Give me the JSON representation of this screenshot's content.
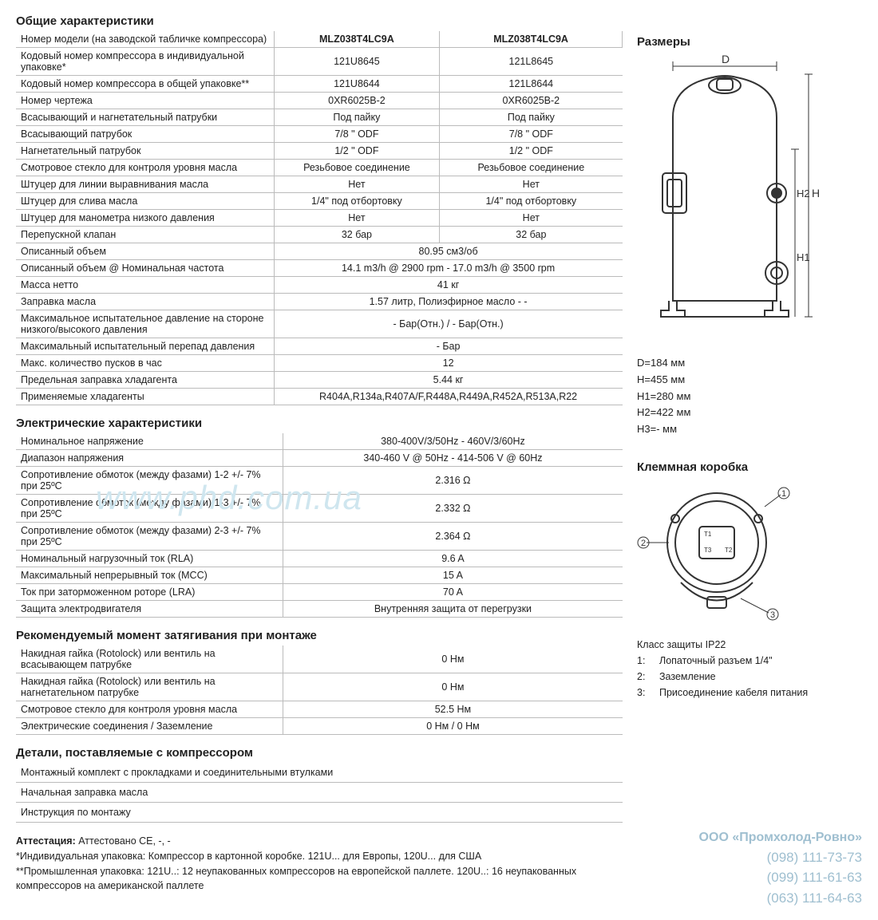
{
  "general": {
    "title": "Общие характеристики",
    "header_label": "Номер модели (на заводской табличке компрессора)",
    "models": [
      "MLZ038T4LC9A",
      "MLZ038T4LC9A"
    ],
    "rows_split": [
      {
        "label": "Кодовый номер компрессора в индивидуальной упаковке*",
        "a": "121U8645",
        "b": "121L8645"
      },
      {
        "label": "Кодовый номер компрессора в общей упаковке**",
        "a": "121U8644",
        "b": "121L8644"
      },
      {
        "label": "Номер чертежа",
        "a": "0XR6025B-2",
        "b": "0XR6025B-2"
      },
      {
        "label": "Всасывающий и нагнетательный патрубки",
        "a": "Под пайку",
        "b": "Под пайку"
      },
      {
        "label": "Всасывающий патрубок",
        "a": "7/8 \" ODF",
        "b": "7/8 \" ODF"
      },
      {
        "label": "Нагнетательный патрубок",
        "a": "1/2 \" ODF",
        "b": "1/2 \" ODF"
      },
      {
        "label": "Смотровое стекло для контроля уровня масла",
        "a": "Резьбовое соединение",
        "b": "Резьбовое соединение"
      },
      {
        "label": "Штуцер для линии выравнивания масла",
        "a": "Нет",
        "b": "Нет"
      },
      {
        "label": "Штуцер для слива масла",
        "a": "1/4\" под отбортовку",
        "b": "1/4\" под отбортовку"
      },
      {
        "label": "Штуцер для манометра низкого давления",
        "a": "Нет",
        "b": "Нет"
      },
      {
        "label": "Перепускной клапан",
        "a": "32 бар",
        "b": "32 бар"
      }
    ],
    "rows_merged": [
      {
        "label": "Описанный объем",
        "v": "80.95 см3/об"
      },
      {
        "label": "Описанный объем @ Номинальная частота",
        "v": "14.1 m3/h @ 2900 rpm - 17.0 m3/h @ 3500 rpm"
      },
      {
        "label": "Масса нетто",
        "v": "41 кг"
      },
      {
        "label": "Заправка масла",
        "v": "1.57 литр, Полиэфирное масло - -"
      },
      {
        "label": "Максимальное испытательное давление на стороне низкого/высокого давления",
        "v": "- Бар(Отн.) / - Бар(Отн.)"
      },
      {
        "label": "Максимальный испытательный перепад давления",
        "v": "- Бар"
      },
      {
        "label": "Макс. количество пусков в час",
        "v": "12"
      },
      {
        "label": "Предельная заправка хладагента",
        "v": "5.44 кг"
      },
      {
        "label": "Применяемые хладагенты",
        "v": "R404A,R134a,R407A/F,R448A,R449A,R452A,R513A,R22"
      }
    ]
  },
  "electrical": {
    "title": "Электрические характеристики",
    "rows": [
      {
        "label": "Номинальное напряжение",
        "v": "380-400V/3/50Hz - 460V/3/60Hz"
      },
      {
        "label": "Диапазон напряжения",
        "v": "340-460 V @ 50Hz - 414-506 V @ 60Hz"
      },
      {
        "label": "Сопротивление обмоток (между фазами) 1-2 +/- 7% при 25ºC",
        "v": "2.316 Ω"
      },
      {
        "label": "Сопротивление обмоток (между фазами) 1-3 +/- 7% при 25ºC",
        "v": "2.332 Ω"
      },
      {
        "label": "Сопротивление обмоток (между фазами) 2-3 +/- 7% при 25ºC",
        "v": "2.364 Ω"
      },
      {
        "label": "Номинальный нагрузочный ток (RLA)",
        "v": "9.6 A"
      },
      {
        "label": "Максимальный непрерывный ток (MCC)",
        "v": "15 A"
      },
      {
        "label": "Ток при заторможенном роторе (LRA)",
        "v": "70 A"
      },
      {
        "label": "Защита электродвигателя",
        "v": "Внутренняя защита от перегрузки"
      }
    ]
  },
  "torque": {
    "title": "Рекомендуемый момент затягивания при монтаже",
    "rows": [
      {
        "label": "Накидная гайка (Rotolock) или вентиль на всасывающем патрубке",
        "v": "0 Нм"
      },
      {
        "label": "Накидная гайка (Rotolock) или вентиль на нагнетательном патрубке",
        "v": "0 Нм"
      },
      {
        "label": "Смотровое стекло для контроля уровня масла",
        "v": "52.5 Нм"
      },
      {
        "label": "Электрические соединения / Заземление",
        "v": "0 Нм / 0 Нм"
      }
    ]
  },
  "details": {
    "title": "Детали, поставляемые с компрессором",
    "items": [
      "Монтажный комплект с прокладками и соединительными втулками",
      "Начальная заправка масла",
      "Инструкция по монтажу"
    ]
  },
  "footnotes": {
    "attest_label": "Аттестация:",
    "attest": " Аттестовано CE, -, -",
    "f1": "*Индивидуальная упаковка: Компрессор в картонной коробке. 121U... для Европы, 120U... для США",
    "f2": "**Промышленная упаковка: 121U..: 12 неупакованных компрессоров на европейской паллете. 120U..: 16 неупакованных компрессоров на американской паллете"
  },
  "dimensions": {
    "title": "Размеры",
    "labels": {
      "d": "D",
      "h": "H",
      "h1": "H1",
      "h2": "H2"
    },
    "list": [
      "D=184 мм",
      "H=455 мм",
      "H1=280 мм",
      "H2=422 мм",
      "H3=- мм"
    ]
  },
  "terminal_box": {
    "title": "Клеммная коробка",
    "ip": "Класс защиты IP22",
    "legend": [
      {
        "n": "1:",
        "t": "Лопаточный разъем 1/4\""
      },
      {
        "n": "2:",
        "t": "Заземление"
      },
      {
        "n": "3:",
        "t": "Присоединение кабеля питания"
      }
    ]
  },
  "watermark": "www.phd.com.ua",
  "company": {
    "name": "ООО «Промхолод-Ровно»",
    "phones": [
      "(098) 111-73-73",
      "(099) 111-61-63",
      "(063) 111-64-63"
    ]
  },
  "colors": {
    "text": "#222222",
    "border": "#bbbbbb",
    "watermark": "#cfe6ef",
    "stamp": "#9fbfd0",
    "diagram_stroke": "#333333"
  }
}
